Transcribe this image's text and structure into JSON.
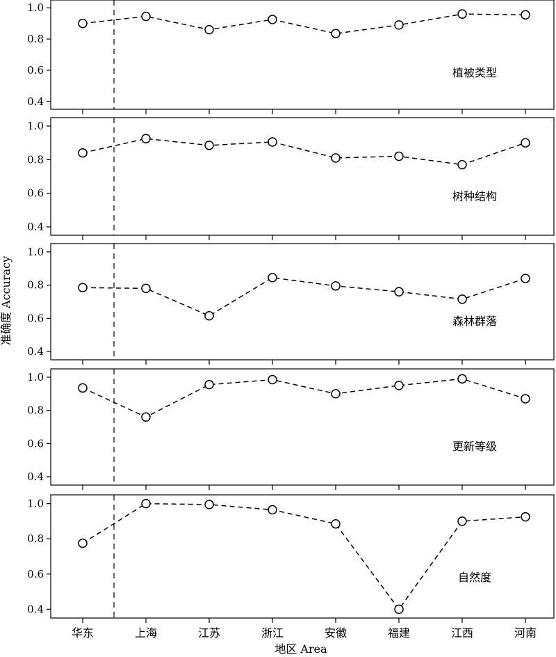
{
  "chart_data": {
    "type": "line",
    "xlabel": "地区 Area",
    "ylabel": "准确度 Accuracy",
    "categories": [
      "华东",
      "上海",
      "江苏",
      "浙江",
      "安徽",
      "福建",
      "江西",
      "河南"
    ],
    "yticks": [
      0.4,
      0.6,
      0.8,
      1.0
    ],
    "ytick_labels": [
      "0.4",
      "0.6",
      "0.8",
      "1.0"
    ],
    "ylim": [
      0.35,
      1.05
    ],
    "grid": false,
    "divider_after_category": "华东",
    "line_style": "dashed",
    "marker": "open-circle",
    "series": [
      {
        "name": "植被类型",
        "values": [
          0.9,
          0.945,
          0.86,
          0.925,
          0.835,
          0.89,
          0.96,
          0.955
        ]
      },
      {
        "name": "树种结构",
        "values": [
          0.84,
          0.925,
          0.885,
          0.905,
          0.81,
          0.82,
          0.77,
          0.9
        ]
      },
      {
        "name": "森林群落",
        "values": [
          0.785,
          0.78,
          0.615,
          0.845,
          0.795,
          0.76,
          0.715,
          0.84
        ]
      },
      {
        "name": "更新等级",
        "values": [
          0.935,
          0.76,
          0.955,
          0.985,
          0.9,
          0.95,
          0.99,
          0.87
        ]
      },
      {
        "name": "自然度",
        "values": [
          0.775,
          1.0,
          0.995,
          0.965,
          0.885,
          0.4,
          0.9,
          0.925
        ]
      }
    ]
  }
}
